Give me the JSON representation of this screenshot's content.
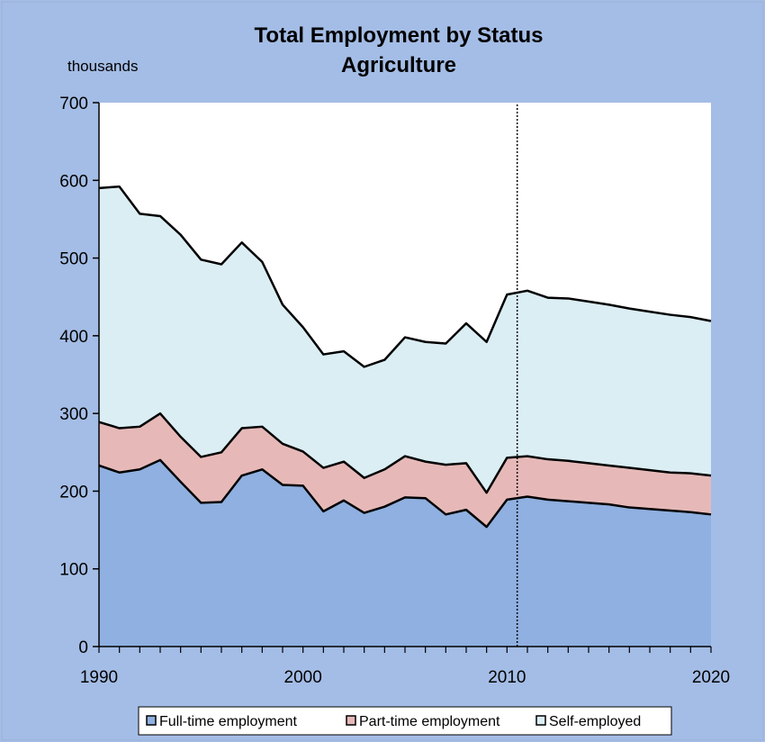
{
  "chart_data": {
    "type": "area",
    "stacked": true,
    "title": "Total Employment  by Status",
    "subtitle": "Agriculture",
    "ylabel": "thousands",
    "xlabel": "",
    "xlim": [
      1990,
      2020
    ],
    "ylim": [
      0,
      700
    ],
    "x_ticks": [
      1990,
      2000,
      2010,
      2020
    ],
    "y_ticks": [
      0,
      100,
      200,
      300,
      400,
      500,
      600,
      700
    ],
    "grid": false,
    "legend_position": "bottom",
    "reference_line_x": 2010.5,
    "colors": {
      "background": "#a4bde6",
      "plot_area": "#ffffff",
      "full_time": "#8fb0e0",
      "part_time": "#e6b9b8",
      "self_employed": "#dbeef4",
      "outline": "#000000"
    },
    "x": [
      1990,
      1991,
      1992,
      1993,
      1994,
      1995,
      1996,
      1997,
      1998,
      1999,
      2000,
      2001,
      2002,
      2003,
      2004,
      2005,
      2006,
      2007,
      2008,
      2009,
      2010,
      2011,
      2012,
      2013,
      2014,
      2015,
      2016,
      2017,
      2018,
      2019,
      2020
    ],
    "series": [
      {
        "name": "Full-time employment",
        "color": "#8fb0e0",
        "values": [
          233,
          224,
          228,
          240,
          212,
          185,
          186,
          220,
          228,
          208,
          207,
          174,
          188,
          172,
          180,
          192,
          191,
          170,
          176,
          154,
          189,
          193,
          189,
          187,
          185,
          183,
          179,
          177,
          175,
          173,
          170
        ]
      },
      {
        "name": "Part-time employment",
        "color": "#e6b9b8",
        "values": [
          56,
          57,
          55,
          60,
          58,
          59,
          64,
          61,
          55,
          53,
          44,
          56,
          50,
          45,
          48,
          53,
          47,
          64,
          60,
          44,
          54,
          52,
          52,
          52,
          51,
          50,
          51,
          50,
          49,
          50,
          50
        ]
      },
      {
        "name": "Self-employed",
        "color": "#dbeef4",
        "values": [
          301,
          311,
          274,
          254,
          260,
          254,
          242,
          239,
          212,
          179,
          160,
          146,
          142,
          143,
          141,
          153,
          154,
          156,
          180,
          194,
          210,
          213,
          208,
          209,
          208,
          207,
          205,
          204,
          203,
          201,
          199
        ]
      }
    ]
  }
}
